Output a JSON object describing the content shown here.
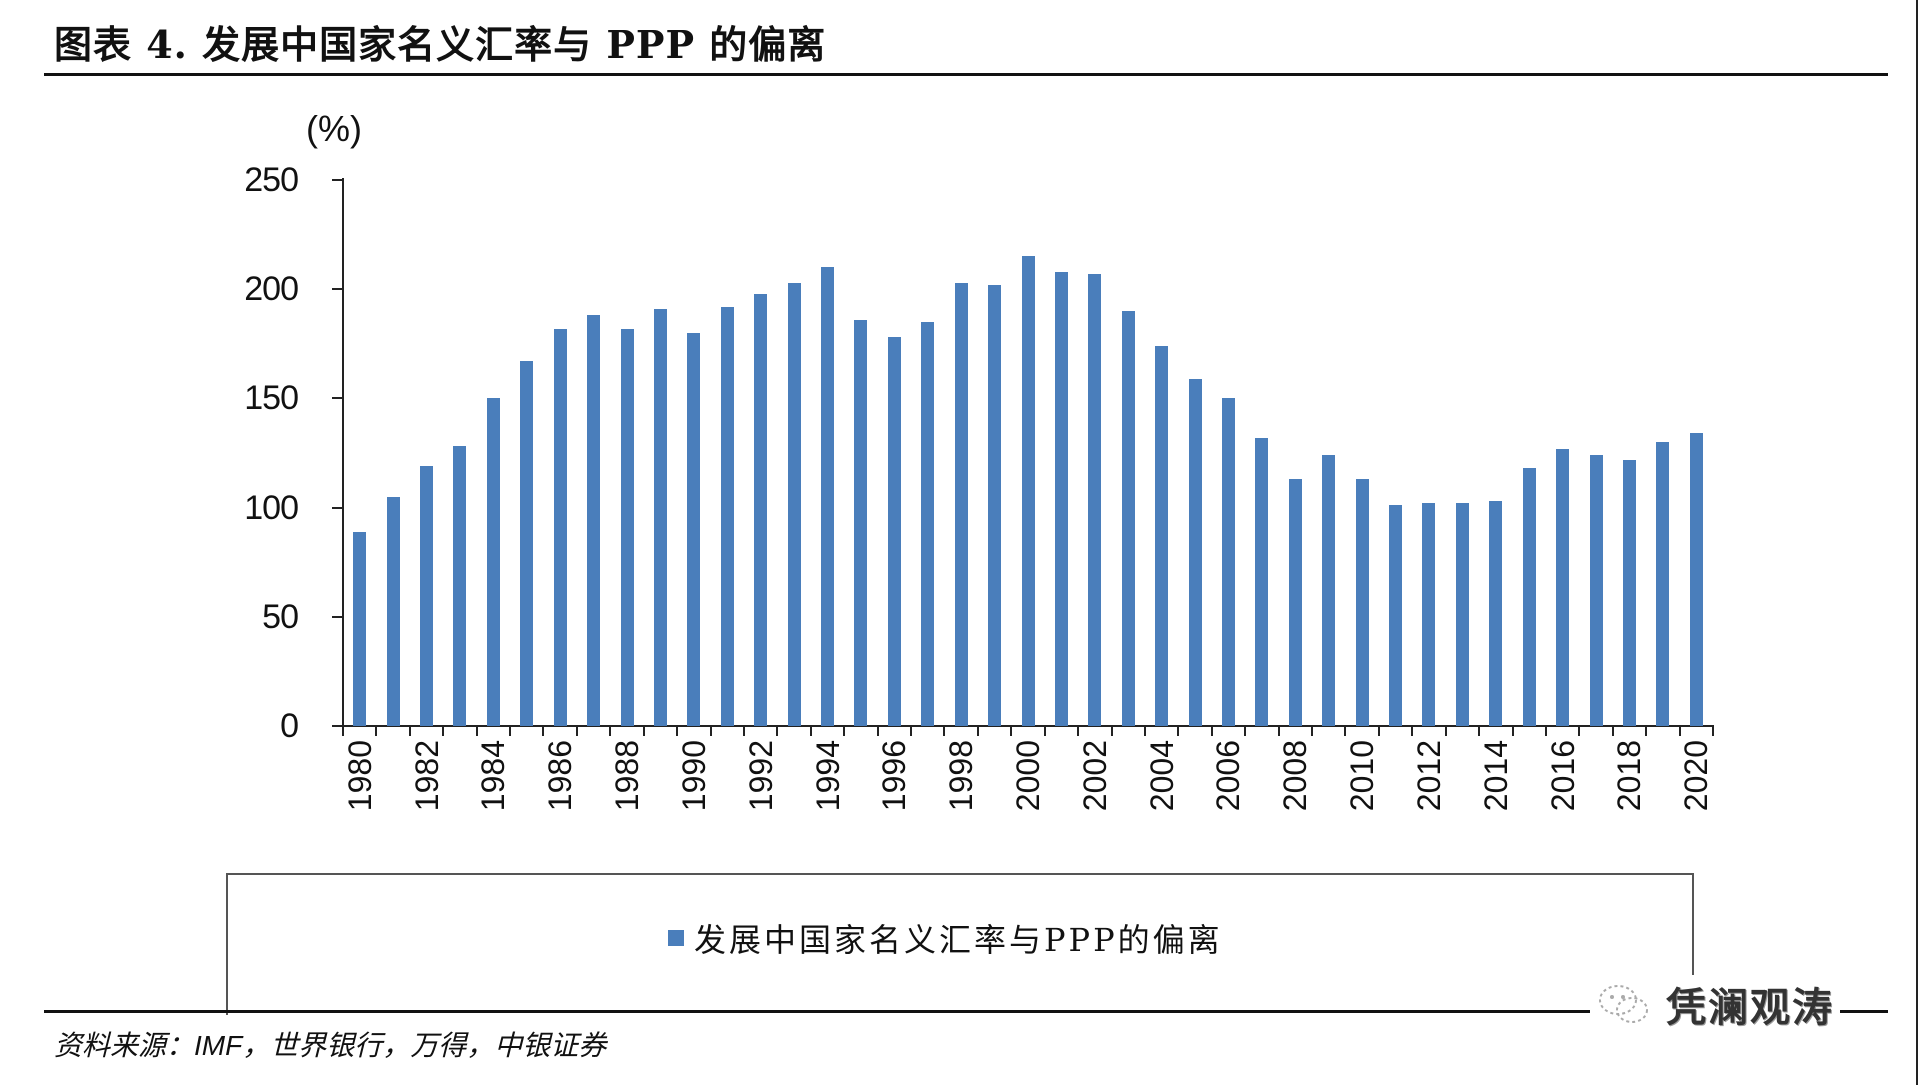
{
  "header": {
    "title": "图表 4. 发展中国家名义汇率与 PPP 的偏离"
  },
  "chart": {
    "unit_label": "(%)",
    "legend_label": "发展中国家名义汇率与PPP的偏离",
    "bar_color": "#4a7ebb"
  },
  "footer": {
    "source": "资料来源：IMF，世界银行，万得，中银证券",
    "watermark": "凭澜观涛"
  },
  "chart_data": {
    "type": "bar",
    "title": "图表 4. 发展中国家名义汇率与 PPP 的偏离",
    "xlabel": "",
    "ylabel": "(%)",
    "ylim": [
      0,
      250
    ],
    "yticks": [
      0,
      50,
      100,
      150,
      200,
      250
    ],
    "grid": false,
    "legend_position": "bottom",
    "xtick_labels": [
      "1980",
      "1982",
      "1984",
      "1986",
      "1988",
      "1990",
      "1992",
      "1994",
      "1996",
      "1998",
      "2000",
      "2002",
      "2004",
      "2006",
      "2008",
      "2010",
      "2012",
      "2014",
      "2016",
      "2018",
      "2020"
    ],
    "categories": [
      "1980",
      "1981",
      "1982",
      "1983",
      "1984",
      "1985",
      "1986",
      "1987",
      "1988",
      "1989",
      "1990",
      "1991",
      "1992",
      "1993",
      "1994",
      "1995",
      "1996",
      "1997",
      "1998",
      "1999",
      "2000",
      "2001",
      "2002",
      "2003",
      "2004",
      "2005",
      "2006",
      "2007",
      "2008",
      "2009",
      "2010",
      "2011",
      "2012",
      "2013",
      "2014",
      "2015",
      "2016",
      "2017",
      "2018",
      "2019",
      "2020"
    ],
    "series": [
      {
        "name": "发展中国家名义汇率与PPP的偏离",
        "values": [
          89,
          105,
          119,
          128,
          150,
          167,
          182,
          188,
          182,
          191,
          180,
          192,
          198,
          203,
          210,
          186,
          178,
          185,
          203,
          202,
          215,
          208,
          207,
          190,
          174,
          159,
          150,
          132,
          113,
          124,
          113,
          101,
          102,
          102,
          103,
          118,
          127,
          124,
          122,
          130,
          134
        ]
      }
    ]
  }
}
